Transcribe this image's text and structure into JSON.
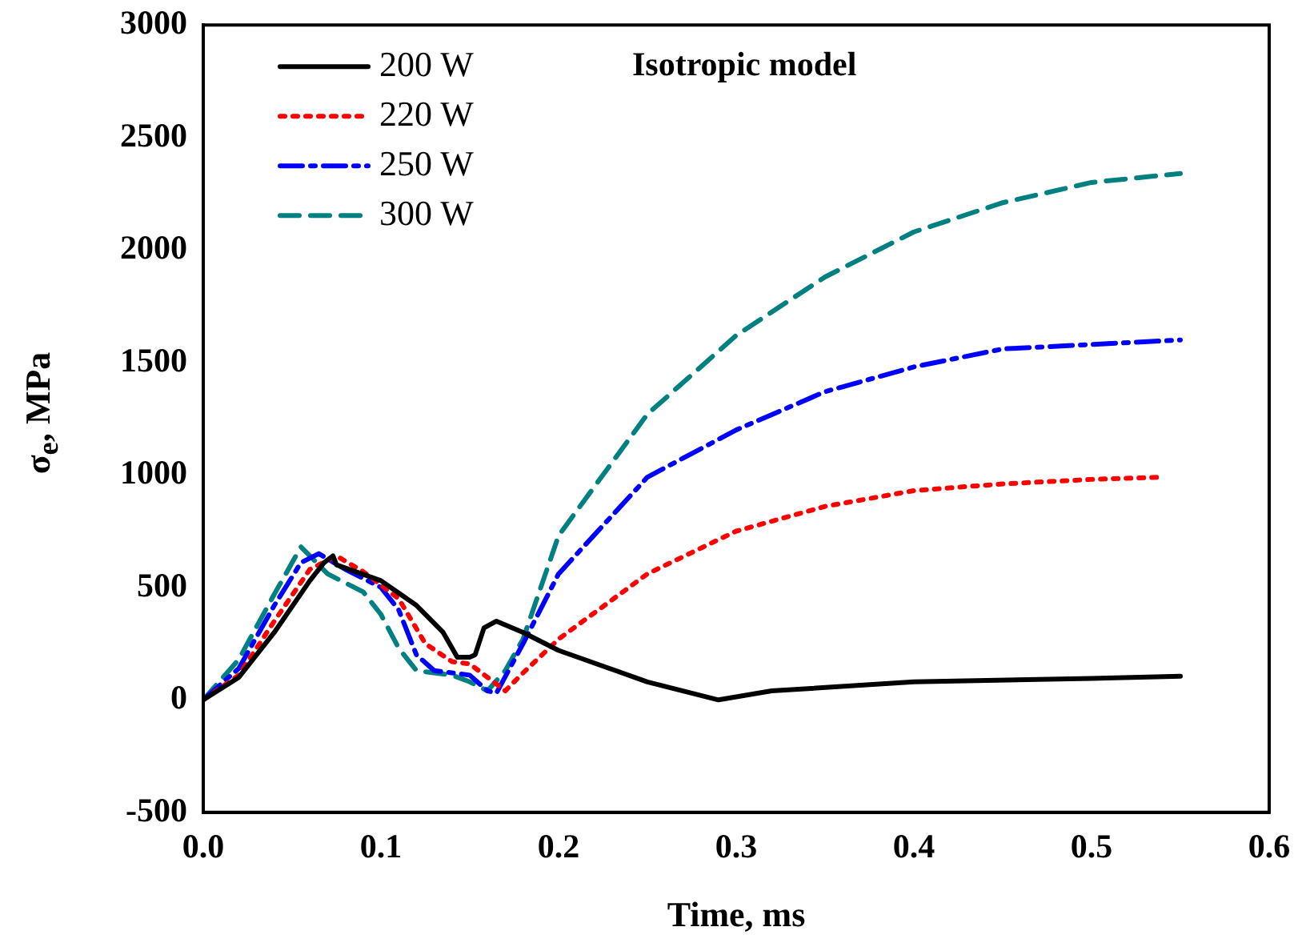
{
  "chart_data": {
    "type": "line",
    "xlabel": "Time, ms",
    "ylabel": "σ$_{e}$, MPa",
    "annotations": [
      "Isotropic model"
    ],
    "xlim": [
      0,
      0.6
    ],
    "xticks": [
      {
        "value": 0,
        "label": "0.0"
      },
      0.1,
      0.2,
      0.3,
      0.4,
      0.5,
      0.6
    ],
    "ylim": [
      -500,
      3000
    ],
    "yticks": [
      -500,
      0,
      500,
      1000,
      1500,
      2000,
      2500,
      3000
    ],
    "grid": false,
    "legend": "top left",
    "marker": "none",
    "series": [
      {
        "name": "200 W",
        "color": "#000000",
        "line_style": "solid",
        "x": [
          0,
          0.02,
          0.04,
          0.06,
          0.068,
          0.073,
          0.075,
          0.1,
          0.12,
          0.135,
          0.143,
          0.15,
          0.153,
          0.158,
          0.165,
          0.18,
          0.2,
          0.25,
          0.29,
          0.32,
          0.4,
          0.5,
          0.55
        ],
        "values": [
          0,
          100,
          300,
          530,
          610,
          640,
          600,
          530,
          420,
          300,
          190,
          190,
          200,
          320,
          350,
          300,
          220,
          80,
          0,
          40,
          80,
          95,
          105
        ]
      },
      {
        "name": "220 W",
        "color": "#ff0000",
        "line_style": "dotted",
        "x": [
          0,
          0.02,
          0.04,
          0.06,
          0.075,
          0.09,
          0.11,
          0.125,
          0.14,
          0.15,
          0.16,
          0.17,
          0.18,
          0.2,
          0.25,
          0.3,
          0.35,
          0.4,
          0.45,
          0.5,
          0.54
        ],
        "values": [
          0,
          110,
          350,
          580,
          640,
          570,
          450,
          250,
          170,
          160,
          100,
          40,
          120,
          270,
          560,
          750,
          860,
          930,
          960,
          980,
          990
        ]
      },
      {
        "name": "250 W",
        "color": "#0000ff",
        "line_style": "dashdot",
        "x": [
          0,
          0.02,
          0.04,
          0.055,
          0.065,
          0.08,
          0.1,
          0.11,
          0.12,
          0.13,
          0.15,
          0.16,
          0.165,
          0.18,
          0.2,
          0.25,
          0.3,
          0.35,
          0.4,
          0.45,
          0.5,
          0.55
        ],
        "values": [
          0,
          140,
          420,
          610,
          650,
          580,
          500,
          400,
          200,
          130,
          110,
          40,
          30,
          250,
          560,
          990,
          1200,
          1370,
          1480,
          1560,
          1580,
          1600
        ]
      },
      {
        "name": "300 W",
        "color": "#008080",
        "line_style": "dashed",
        "x": [
          0,
          0.02,
          0.04,
          0.055,
          0.06,
          0.07,
          0.09,
          0.1,
          0.11,
          0.12,
          0.14,
          0.15,
          0.16,
          0.17,
          0.18,
          0.2,
          0.25,
          0.3,
          0.35,
          0.4,
          0.45,
          0.5,
          0.55
        ],
        "values": [
          0,
          180,
          470,
          680,
          640,
          560,
          480,
          380,
          230,
          130,
          110,
          80,
          40,
          130,
          270,
          730,
          1270,
          1620,
          1880,
          2080,
          2210,
          2300,
          2340
        ]
      }
    ]
  }
}
